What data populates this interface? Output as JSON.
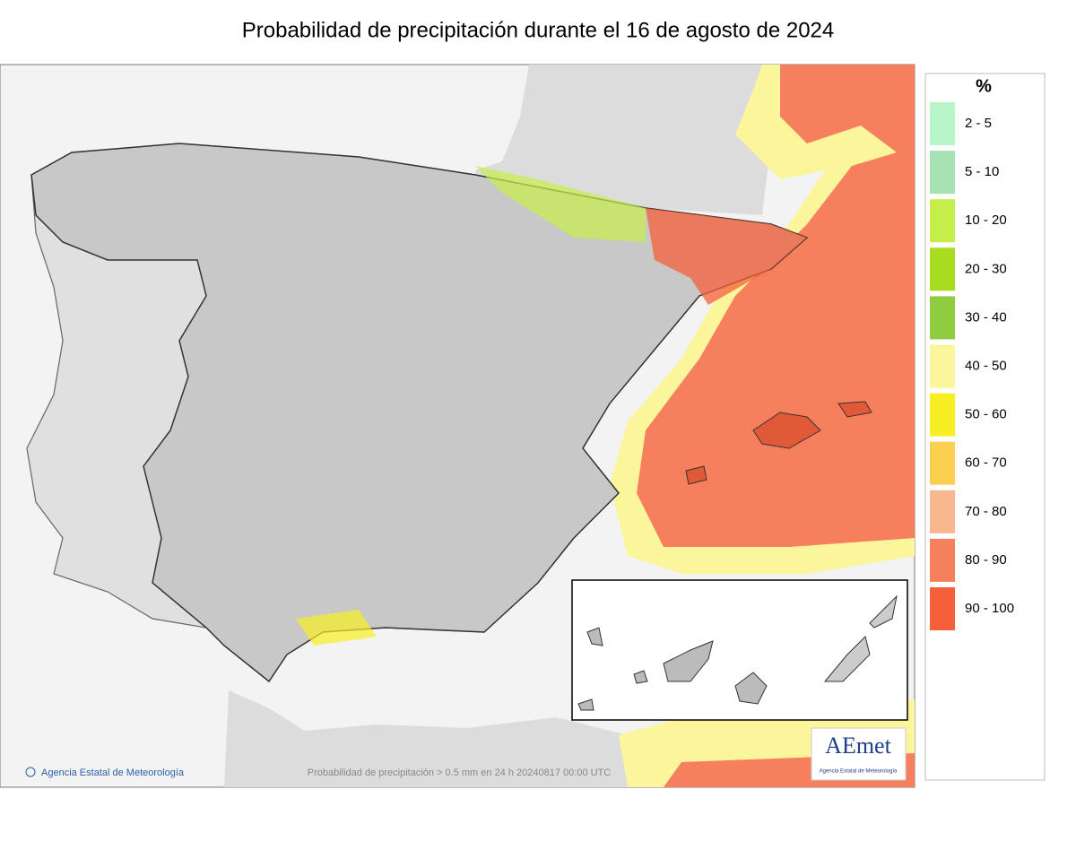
{
  "header": {
    "title": "Probabilidad de precipitación durante el 16 de agosto de 2024"
  },
  "legend": {
    "unit": "%",
    "items": [
      {
        "label": "2 - 5",
        "color": "#b8f5c8"
      },
      {
        "label": "5 - 10",
        "color": "#a6e2b2"
      },
      {
        "label": "10 - 20",
        "color": "#c6ee4a"
      },
      {
        "label": "20 - 30",
        "color": "#a8dc1e"
      },
      {
        "label": "30 - 40",
        "color": "#90cc40"
      },
      {
        "label": "40 - 50",
        "color": "#fbf59c"
      },
      {
        "label": "50 - 60",
        "color": "#f8ef22"
      },
      {
        "label": "60 - 70",
        "color": "#fbcf50"
      },
      {
        "label": "70 - 80",
        "color": "#f9b790"
      },
      {
        "label": "80 - 90",
        "color": "#f6805e"
      },
      {
        "label": "90 - 100",
        "color": "#f5603a"
      }
    ]
  },
  "footer": {
    "agency": "Agencia Estatal de Meteorología",
    "caption": "Probabilidad de precipitación > 0.5 mm en 24 h 20240817 00:00 UTC",
    "logo": "AEmet",
    "logo_subtitle": "Agencia Estatal de Meteorología"
  }
}
